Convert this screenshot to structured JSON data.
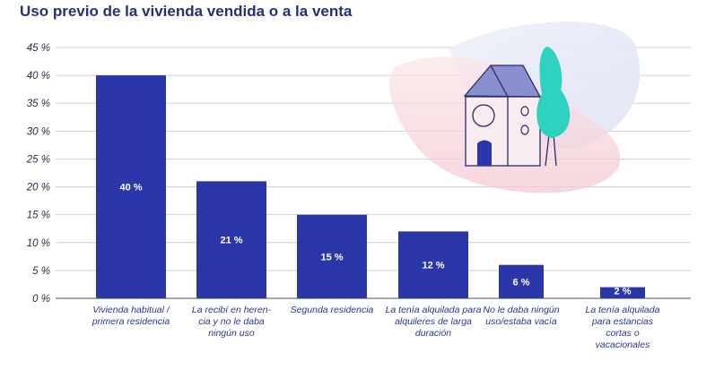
{
  "chart_data": {
    "type": "bar",
    "title": "Uso previo de la vivienda vendida o a la venta",
    "categories": [
      "Vivienda habitual / primera residencia",
      "La recibí en heren-cia y no le daba ningún uso",
      "Segunda residencia",
      "La tenía alquilada para alquileres de larga duración",
      "No le daba ningún uso/estaba vacía",
      "La tenía alquilada para estancias cortas o vacacionales"
    ],
    "values": [
      40,
      21,
      15,
      12,
      6,
      2
    ],
    "data_labels": [
      "40 %",
      "21 %",
      "15 %",
      "12 %",
      "6 %",
      "2 %"
    ],
    "yticks": [
      "0 %",
      "5 %",
      "10 %",
      "15 %",
      "20 %",
      "25 %",
      "30 %",
      "35 %",
      "40 %",
      "45 %"
    ],
    "ylim": [
      0,
      45
    ],
    "grid": true,
    "bar_color": "#2b37a8",
    "xlabel": "",
    "ylabel": ""
  }
}
